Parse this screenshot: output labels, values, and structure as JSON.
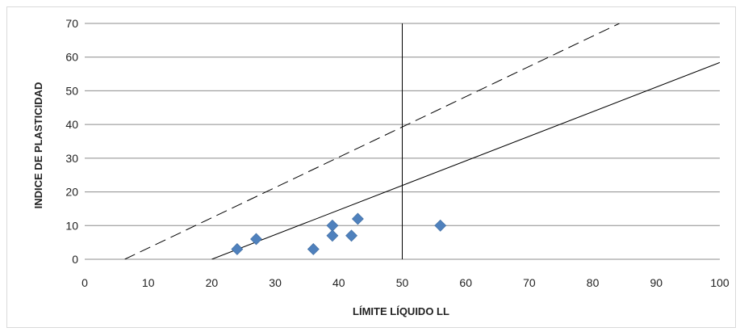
{
  "chart_data": {
    "type": "scatter",
    "title": "",
    "xlabel": "LÍMITE  LÍQUIDO  LL",
    "ylabel": "INDICE  DE PLASTICIDAD",
    "xlim": [
      0,
      100
    ],
    "ylim": [
      0,
      70
    ],
    "x_ticks": [
      "0",
      "10",
      "20",
      "30",
      "40",
      "50",
      "60",
      "70",
      "80",
      "90",
      "100"
    ],
    "y_ticks": [
      "0",
      "10",
      "20",
      "30",
      "40",
      "50",
      "60",
      "70"
    ],
    "grid": "horizontal",
    "legend": "none",
    "marker_color": "#4f81bd",
    "points": [
      {
        "x": 24,
        "y": 3
      },
      {
        "x": 27,
        "y": 6
      },
      {
        "x": 36,
        "y": 3
      },
      {
        "x": 39,
        "y": 10
      },
      {
        "x": 39,
        "y": 7
      },
      {
        "x": 42,
        "y": 7
      },
      {
        "x": 43,
        "y": 12
      },
      {
        "x": 56,
        "y": 10
      }
    ],
    "reference_lines": [
      {
        "kind": "solid",
        "points": [
          [
            20,
            0
          ],
          [
            100,
            58.4
          ]
        ]
      },
      {
        "kind": "dashed",
        "points": [
          [
            6.3,
            0
          ],
          [
            84.2,
            70
          ]
        ]
      },
      {
        "kind": "vertical",
        "points": [
          [
            50,
            0
          ],
          [
            50,
            70
          ]
        ]
      }
    ]
  }
}
